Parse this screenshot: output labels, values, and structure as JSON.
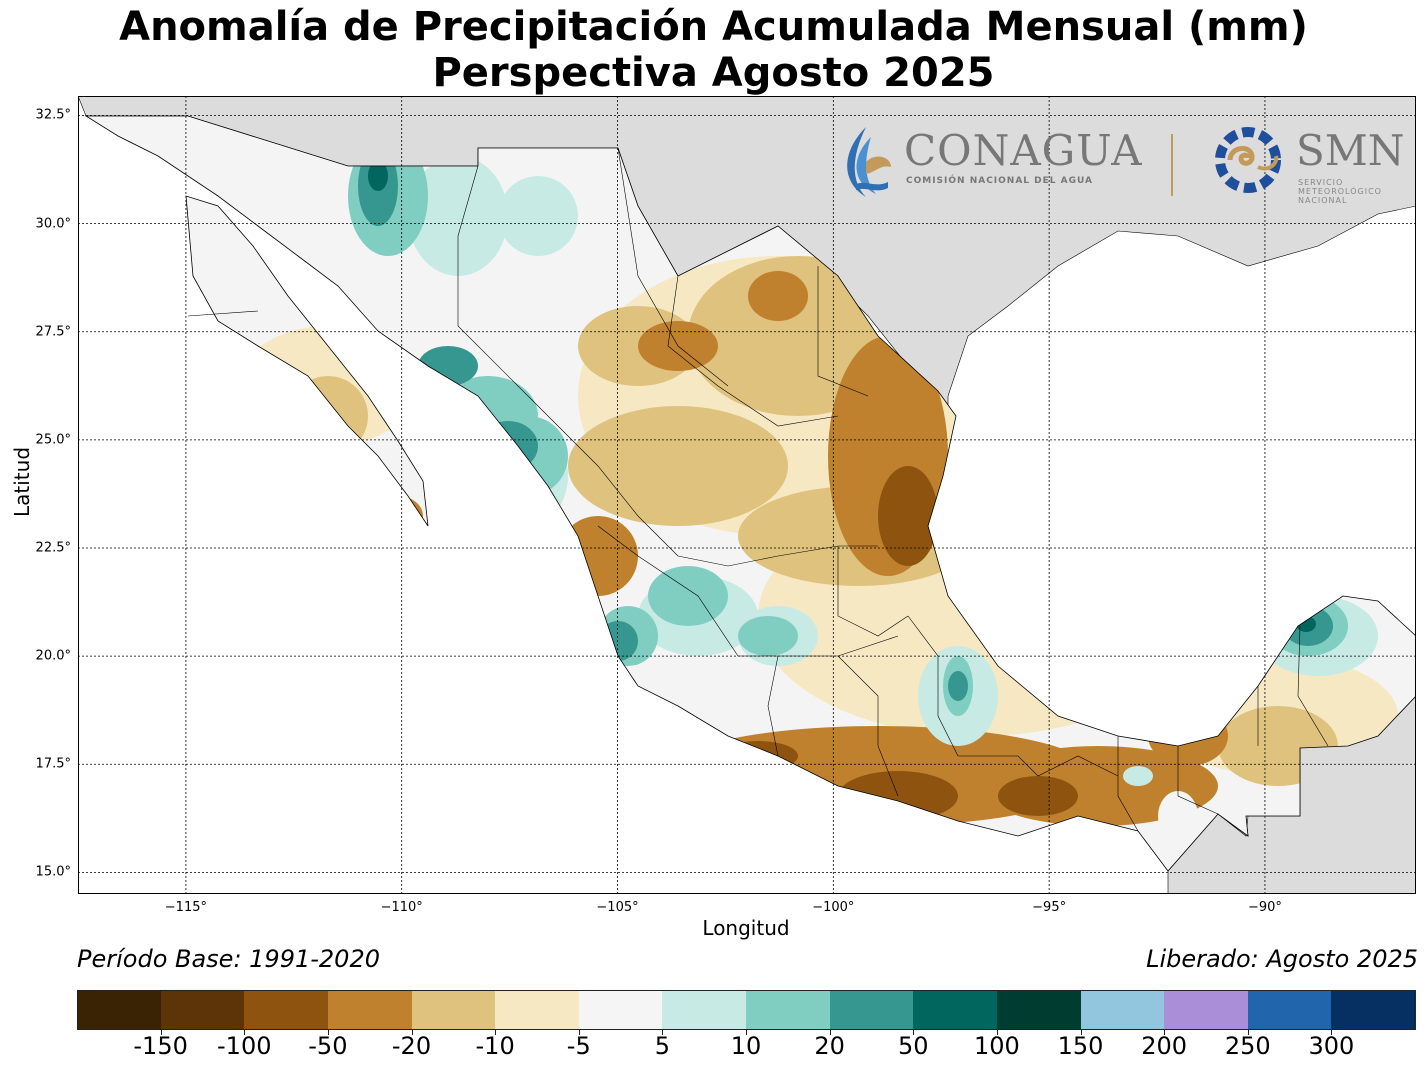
{
  "title": {
    "line1": "Anomalía de Precipitación Acumulada Mensual (mm)",
    "line2": "Perspectiva Agosto 2025"
  },
  "axes": {
    "xlabel": "Longitud",
    "ylabel": "Latitud",
    "lon_range": [
      -117.5,
      -86.5
    ],
    "lat_range": [
      14.5,
      32.95
    ],
    "lon_ticks": [
      "−115°",
      "−110°",
      "−105°",
      "−100°",
      "−95°",
      "−90°"
    ],
    "lon_tick_values": [
      -115,
      -110,
      -105,
      -100,
      -95,
      -90
    ],
    "lat_ticks": [
      "32.5°",
      "30.0°",
      "27.5°",
      "25.0°",
      "22.5°",
      "20.0°",
      "17.5°",
      "15.0°"
    ],
    "lat_tick_values": [
      32.5,
      30.0,
      27.5,
      25.0,
      22.5,
      20.0,
      17.5,
      15.0
    ],
    "grid": "dotted"
  },
  "footer": {
    "base_period": "Período Base: 1991-2020",
    "released": "Liberado: Agosto 2025"
  },
  "logos": {
    "conagua_name": "CONAGUA",
    "conagua_sub": "COMISIÓN NACIONAL DEL AGUA",
    "smn_name": "SMN",
    "smn_sub": "SERVICIO METEOROLÓGICO NACIONAL"
  },
  "colorbar": {
    "colors": [
      "#3a2205",
      "#5c3408",
      "#8e530f",
      "#bf812d",
      "#dfc27d",
      "#f6e8c3",
      "#f5f5f5",
      "#c7eae5",
      "#80cdc1",
      "#35978f",
      "#01665e",
      "#003c30",
      "#92c5de",
      "#aa8fd8",
      "#2166ac",
      "#053061"
    ],
    "labels": [
      "-150",
      "-100",
      "-50",
      "-20",
      "-10",
      "-5",
      "5",
      "10",
      "20",
      "50",
      "100",
      "150",
      "200",
      "250",
      "300"
    ]
  },
  "colors": {
    "background_land_other": "#dcdcdc",
    "ocean": "#ffffff",
    "neutral": "#f4f4f4"
  }
}
